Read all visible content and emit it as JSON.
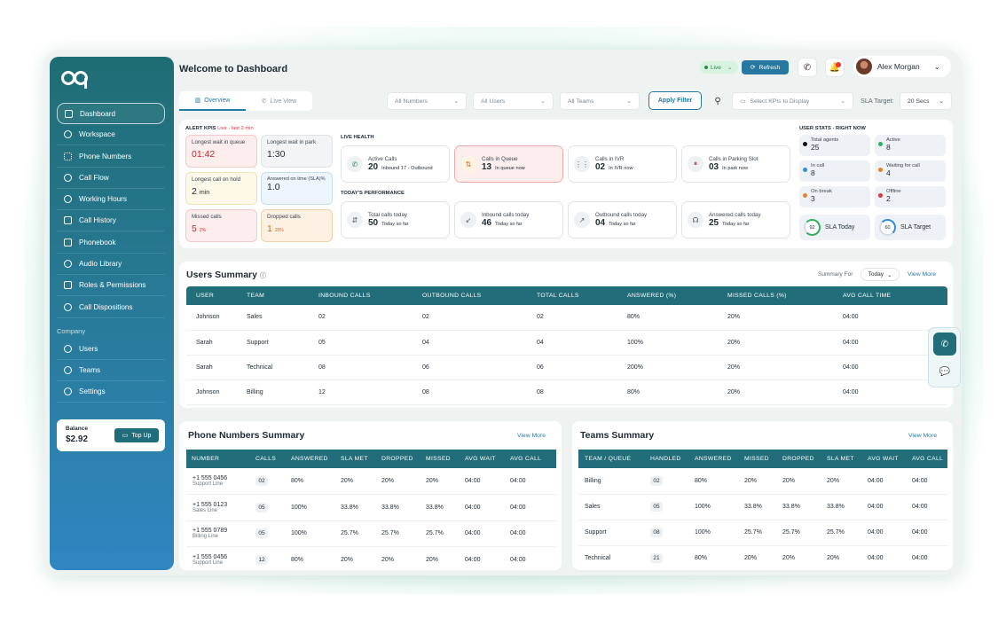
{
  "header": {
    "title": "Welcome to Dashboard",
    "live": "Live",
    "refresh": "Refresh",
    "user_name": "Alex Morgan"
  },
  "sidebar": {
    "items": [
      {
        "label": "Dashboard",
        "icon": "grid-icon"
      },
      {
        "label": "Workspace",
        "icon": "globe-icon"
      },
      {
        "label": "Phone Numbers",
        "icon": "dialpad-icon"
      },
      {
        "label": "Call Flow",
        "icon": "flow-icon"
      },
      {
        "label": "Working Hours",
        "icon": "clock-icon"
      },
      {
        "label": "Call History",
        "icon": "history-icon"
      },
      {
        "label": "Phonebook",
        "icon": "contacts-icon"
      },
      {
        "label": "Audio Library",
        "icon": "mic-icon"
      },
      {
        "label": "Roles & Permissions",
        "icon": "shield-icon"
      },
      {
        "label": "Call Dispositions",
        "icon": "phone-icon"
      }
    ],
    "company_label": "Company",
    "company_items": [
      {
        "label": "Users",
        "icon": "users-icon"
      },
      {
        "label": "Teams",
        "icon": "team-icon"
      },
      {
        "label": "Settings",
        "icon": "gear-icon"
      }
    ],
    "balance_label": "Balance",
    "balance_value": "$2.92",
    "topup": "Top Up"
  },
  "toolbar": {
    "tabs": [
      "Overview",
      "Live View"
    ],
    "filters": [
      "All Numbers",
      "All Users",
      "All Teams"
    ],
    "apply": "Apply Filter",
    "kpi_select": "Select KPIs to Display",
    "sla_label": "SLA Target:",
    "sla_value": "20 Secs"
  },
  "alert_kpis": {
    "title": "ALERT KPIS",
    "subtitle": "Live - last 2 min",
    "items": [
      {
        "label": "Longest wait in queue",
        "value": "01:42",
        "sub": ""
      },
      {
        "label": "Longest wait in park",
        "value": "1:30",
        "sub": ""
      },
      {
        "label": "Longest call on hold",
        "value": "2",
        "sub": "min"
      },
      {
        "label": "Answered on time (SLA)%",
        "value": "1.0",
        "sub": ""
      },
      {
        "label": "Missed calls",
        "value": "5",
        "sub": "2%"
      },
      {
        "label": "Dropped calls",
        "value": "1",
        "sub": "20%"
      }
    ]
  },
  "live_health": {
    "title": "LIVE HEALTH",
    "items": [
      {
        "label": "Active Calls",
        "value": "20",
        "sub": "Inbound 17 - Outbound"
      },
      {
        "label": "Calls in Queue",
        "value": "13",
        "sub": "In queue now"
      },
      {
        "label": "Calls in IVR",
        "value": "02",
        "sub": "In IVR now"
      },
      {
        "label": "Calls in Parking Slot",
        "value": "03",
        "sub": "In park now"
      }
    ]
  },
  "performance": {
    "title": "TODAY'S PERFORMANCE",
    "items": [
      {
        "label": "Total calls today",
        "value": "50",
        "sub": "Today so far"
      },
      {
        "label": "Inbound calls today",
        "value": "46",
        "sub": "Today so far"
      },
      {
        "label": "Outbound calls today",
        "value": "04",
        "sub": "Today so far"
      },
      {
        "label": "Answered calls today",
        "value": "25",
        "sub": "Today so far"
      }
    ]
  },
  "user_stats": {
    "title": "USER STATS - RIGHT NOW",
    "items": [
      {
        "label": "Total agents",
        "value": "25",
        "color": "#111111"
      },
      {
        "label": "Active",
        "value": "8",
        "color": "#2fae5b"
      },
      {
        "label": "In call",
        "value": "8",
        "color": "#2f8fd6"
      },
      {
        "label": "Waiting for call",
        "value": "4",
        "color": "#e8812c"
      },
      {
        "label": "On break",
        "value": "3",
        "color": "#e8812c"
      },
      {
        "label": "Offline",
        "value": "2",
        "color": "#d93838"
      }
    ],
    "sla_today": {
      "label": "SLA Today",
      "value": "92"
    },
    "sla_target": {
      "label": "SLA Target",
      "value": "60"
    }
  },
  "users_summary": {
    "title": "Users Summary",
    "summary_for": "Summary For",
    "period": "Today",
    "view_more": "View More",
    "columns": [
      "USER",
      "TEAM",
      "INBOUND CALLS",
      "OUTBOUND CALLS",
      "TOTAL CALLS",
      "ANSWERED (%)",
      "MISSED CALLS (%)",
      "AVG CALL TIME"
    ],
    "rows": [
      [
        "Johnson",
        "Sales",
        "02",
        "02",
        "02",
        "80%",
        "20%",
        "04:00"
      ],
      [
        "Sarah",
        "Support",
        "05",
        "04",
        "04",
        "100%",
        "20%",
        "04:00"
      ],
      [
        "Sarah",
        "Technical",
        "08",
        "06",
        "06",
        "200%",
        "20%",
        "04:00"
      ],
      [
        "Johnson",
        "Billing",
        "12",
        "08",
        "08",
        "80%",
        "20%",
        "04:00"
      ]
    ]
  },
  "phone_summary": {
    "title": "Phone Numbers Summary",
    "view_more": "View More",
    "columns": [
      "NUMBER",
      "CALLS",
      "ANSWERED",
      "SLA MET",
      "DROPPED",
      "MISSED",
      "AVG WAIT",
      "AVG CALL"
    ],
    "rows": [
      {
        "number": "+1 555 0456",
        "line": "Support Line",
        "cells": [
          "02",
          "80%",
          "20%",
          "20%",
          "20%",
          "04:00",
          "04:00"
        ]
      },
      {
        "number": "+1 555 0123",
        "line": "Sales Line",
        "cells": [
          "05",
          "100%",
          "33.8%",
          "33.8%",
          "33.8%",
          "04:00",
          "04:00"
        ]
      },
      {
        "number": "+1 555 0789",
        "line": "Billing Line",
        "cells": [
          "05",
          "100%",
          "25.7%",
          "25.7%",
          "25.7%",
          "04:00",
          "04:00"
        ]
      },
      {
        "number": "+1 555 0456",
        "line": "Support Line",
        "cells": [
          "12",
          "80%",
          "20%",
          "20%",
          "20%",
          "04:00",
          "04:00"
        ]
      }
    ]
  },
  "teams_summary": {
    "title": "Teams Summary",
    "view_more": "View More",
    "columns": [
      "TEAM / QUEUE",
      "HANDLED",
      "ANSWERED",
      "MISSED",
      "DROPPED",
      "SLA MET",
      "AVG WAIT",
      "AVG CALL"
    ],
    "rows": [
      [
        "Billing",
        "02",
        "80%",
        "20%",
        "20%",
        "20%",
        "04:00",
        "04:00"
      ],
      [
        "Sales",
        "05",
        "100%",
        "33.8%",
        "33.8%",
        "33.8%",
        "04:00",
        "04:00"
      ],
      [
        "Support",
        "08",
        "100%",
        "25.7%",
        "25.7%",
        "25.7%",
        "04:00",
        "04:00"
      ],
      [
        "Technical",
        "21",
        "80%",
        "20%",
        "20%",
        "20%",
        "04:00",
        "04:00"
      ]
    ]
  }
}
